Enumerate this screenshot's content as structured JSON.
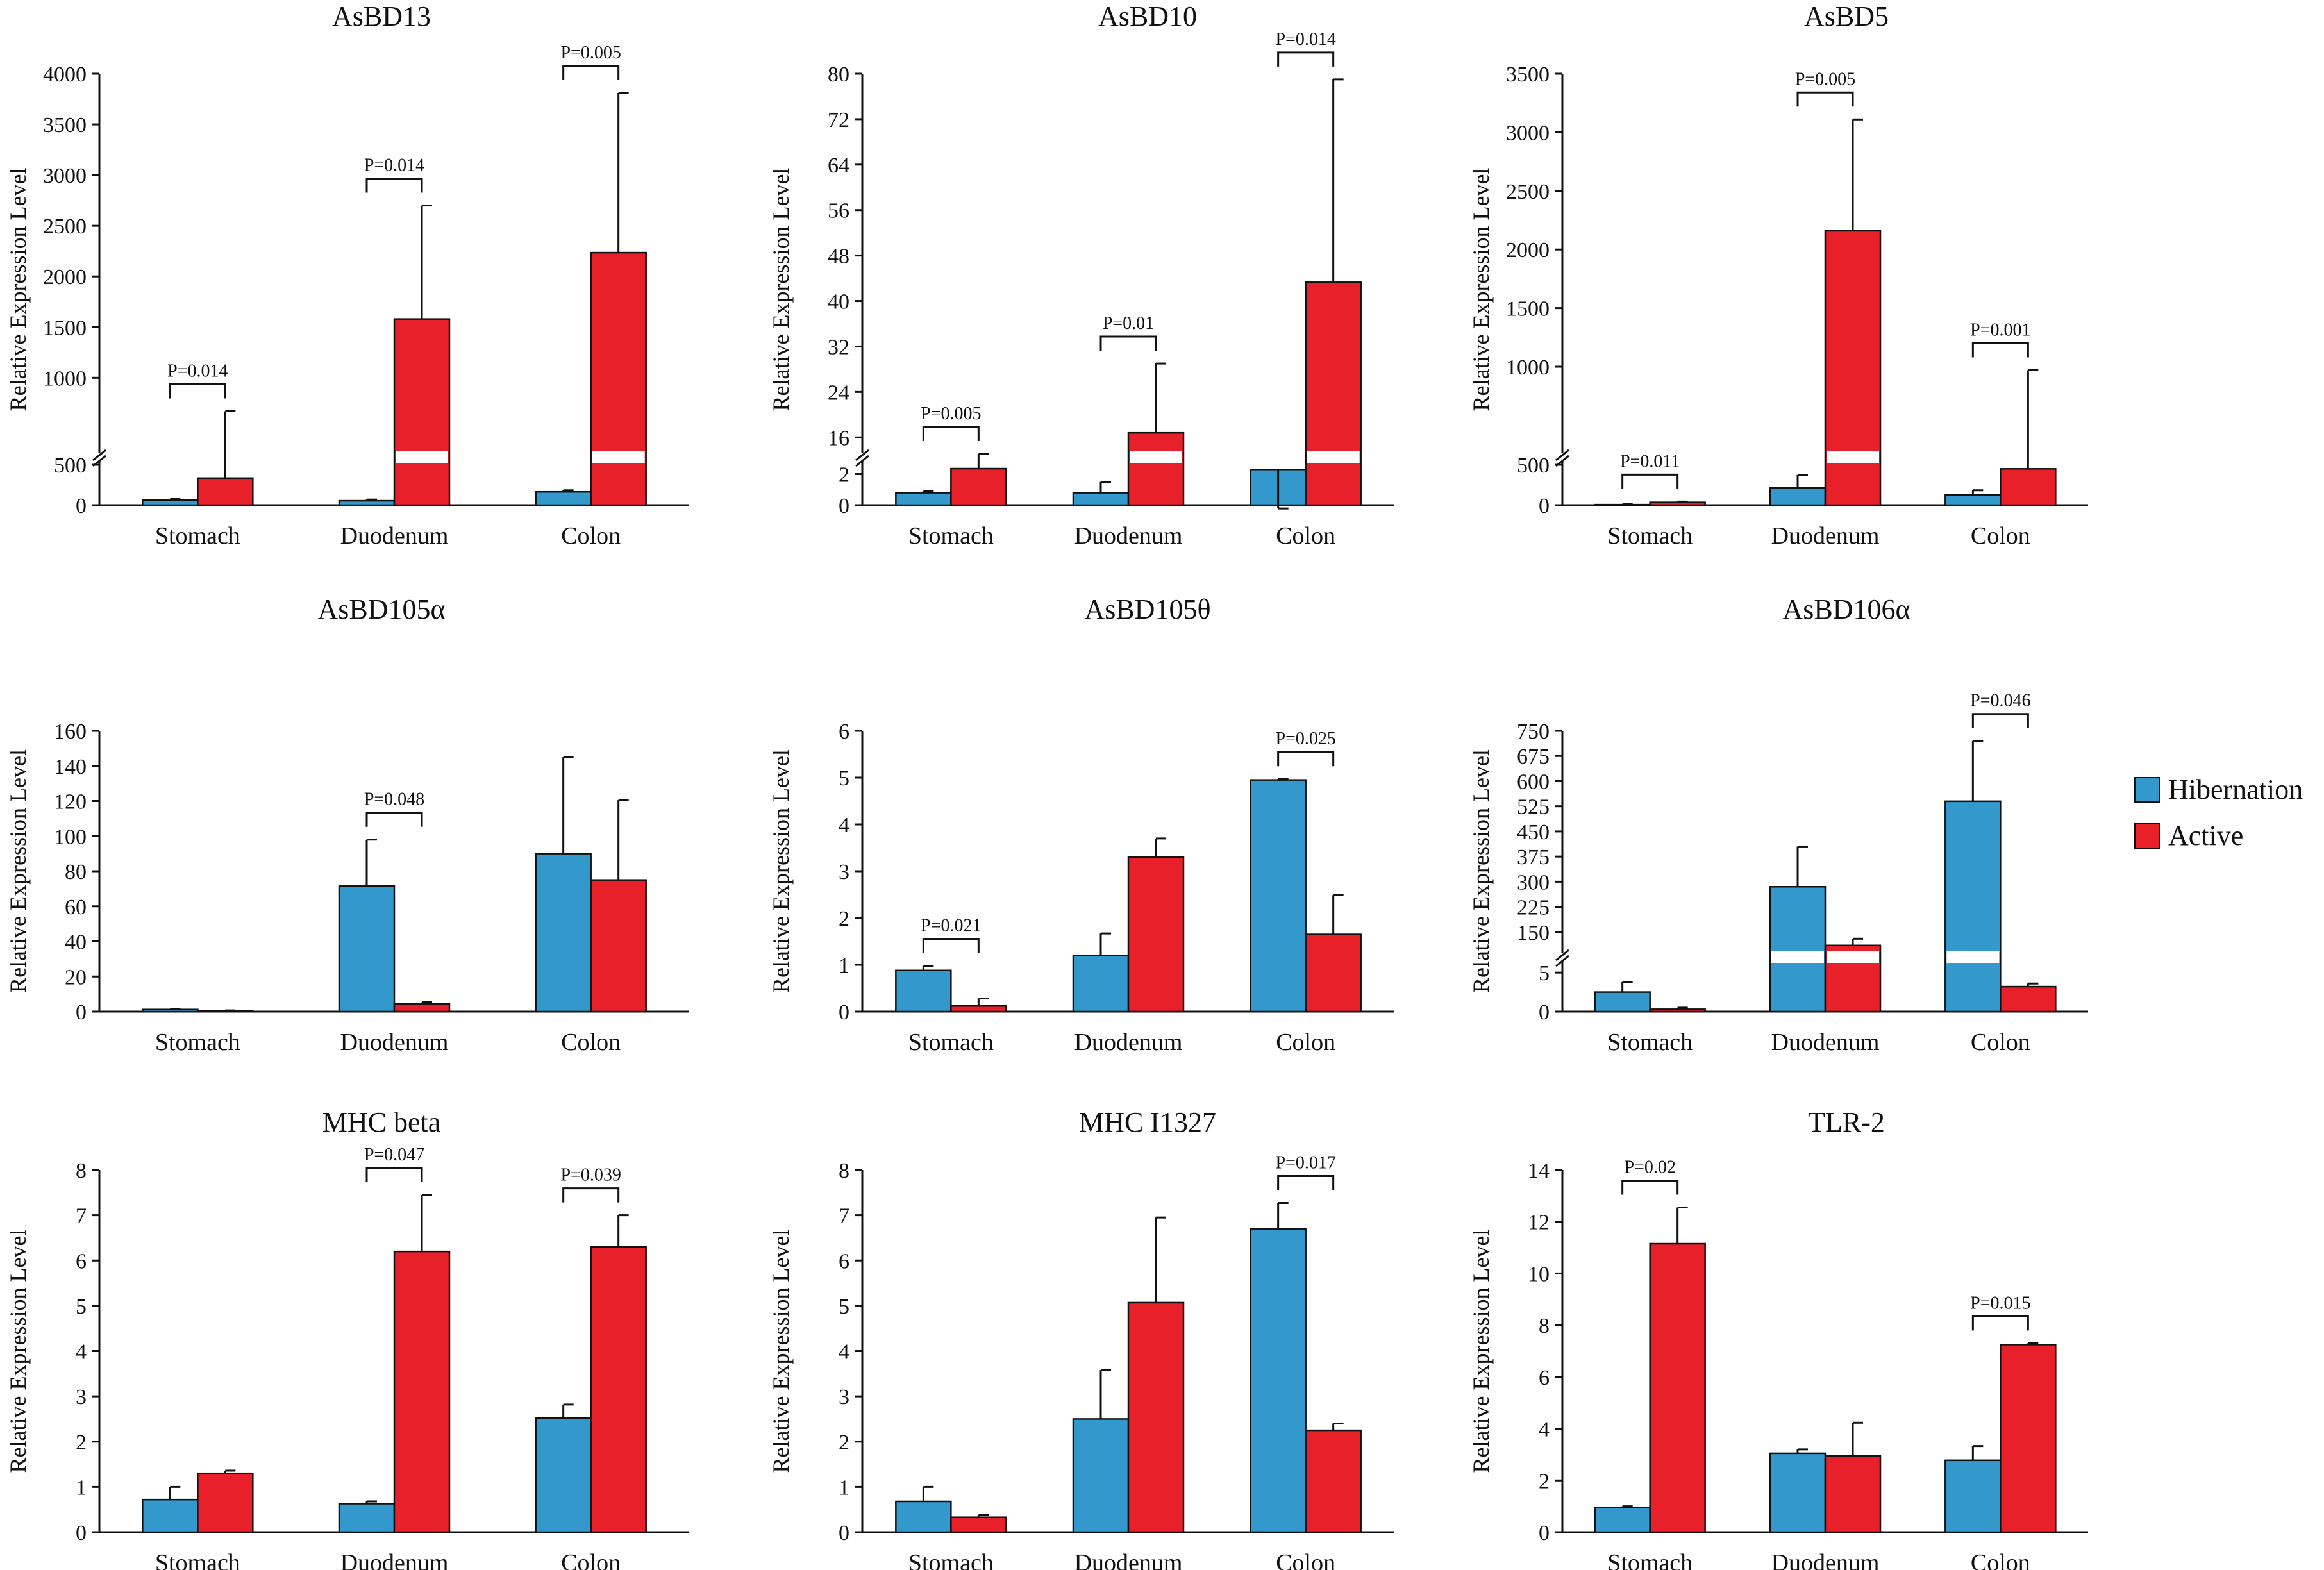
{
  "colors": {
    "hibernation": "#3399cc",
    "active": "#e8202a",
    "axis": "#111111",
    "break": "#ffffff"
  },
  "legend": {
    "hibernation": "Hibernation",
    "active": "Active"
  },
  "chart_data": [
    {
      "type": "bar",
      "title": "AsBD13",
      "ylabel": "Relative Expression Level",
      "categories": [
        "Stomach",
        "Duodenum",
        "Colon"
      ],
      "series": [
        {
          "name": "Hibernation",
          "values": [
            65,
            55,
            165
          ],
          "errors": [
            10,
            15,
            20
          ]
        },
        {
          "name": "Active",
          "values": [
            335,
            1580,
            2235
          ],
          "errors": [
            335,
            1120,
            1575
          ]
        }
      ],
      "axis_break": {
        "low_max": 500,
        "low_ticks": [
          0
        ],
        "high_min": 300,
        "high_max": 4000,
        "high_ticks": [
          500,
          1000,
          1500,
          2000,
          2500,
          3000,
          3500,
          4000
        ]
      },
      "pvalues": [
        {
          "group": 0,
          "label": "P=0.014"
        },
        {
          "group": 1,
          "label": "P=0.014"
        },
        {
          "group": 2,
          "label": "P=0.005"
        }
      ]
    },
    {
      "type": "bar",
      "title": "AsBD10",
      "ylabel": "Relative Expression Level",
      "categories": [
        "Stomach",
        "Duodenum",
        "Colon"
      ],
      "series": [
        {
          "name": "Hibernation",
          "values": [
            0.8,
            0.8,
            2.3
          ],
          "errors": [
            0.1,
            0.7,
            1.2
          ]
        },
        {
          "name": "Active",
          "values": [
            10.5,
            16.8,
            43.3
          ],
          "errors": [
            2.6,
            12.2,
            35.7
          ]
        }
      ],
      "axis_break": {
        "low_max": 2.6,
        "low_ticks": [
          0,
          2
        ],
        "high_min": 14,
        "high_max": 80,
        "high_ticks": [
          16,
          24,
          32,
          40,
          48,
          56,
          64,
          72,
          80
        ]
      },
      "pvalues": [
        {
          "group": 0,
          "label": "P=0.005"
        },
        {
          "group": 1,
          "label": "P=0.01"
        },
        {
          "group": 2,
          "label": "P=0.014"
        }
      ]
    },
    {
      "type": "bar",
      "title": "AsBD5",
      "ylabel": "Relative Expression Level",
      "categories": [
        "Stomach",
        "Duodenum",
        "Colon"
      ],
      "series": [
        {
          "name": "Hibernation",
          "values": [
            7,
            215,
            125
          ],
          "errors": [
            5,
            160,
            60
          ]
        },
        {
          "name": "Active",
          "values": [
            35,
            2160,
            450
          ],
          "errors": [
            10,
            950,
            520
          ]
        }
      ],
      "axis_break": {
        "low_max": 500,
        "low_ticks": [
          0
        ],
        "high_min": 300,
        "high_max": 3500,
        "high_ticks": [
          500,
          1000,
          1500,
          2000,
          2500,
          3000,
          3500
        ]
      },
      "pvalues": [
        {
          "group": 0,
          "label": "P=0.011"
        },
        {
          "group": 1,
          "label": "P=0.005"
        },
        {
          "group": 2,
          "label": "P=0.001"
        }
      ]
    },
    {
      "type": "bar",
      "title": "AsBD105α",
      "ylabel": "Relative Expression Level",
      "categories": [
        "Stomach",
        "Duodenum",
        "Colon"
      ],
      "series": [
        {
          "name": "Hibernation",
          "values": [
            1.2,
            71.5,
            90
          ],
          "errors": [
            0.3,
            26.5,
            55
          ]
        },
        {
          "name": "Active",
          "values": [
            0.5,
            4.5,
            75
          ],
          "errors": [
            0.2,
            0.8,
            45.5
          ]
        }
      ],
      "ylim": [
        0,
        160
      ],
      "yticks": [
        0,
        20,
        40,
        60,
        80,
        100,
        120,
        140,
        160
      ],
      "pvalues": [
        {
          "group": 1,
          "label": "P=0.048"
        }
      ]
    },
    {
      "type": "bar",
      "title": "AsBD105θ",
      "ylabel": "Relative Expression Level",
      "categories": [
        "Stomach",
        "Duodenum",
        "Colon"
      ],
      "series": [
        {
          "name": "Hibernation",
          "values": [
            0.88,
            1.2,
            4.95
          ],
          "errors": [
            0.1,
            0.47,
            0.02
          ]
        },
        {
          "name": "Active",
          "values": [
            0.12,
            3.3,
            1.65
          ],
          "errors": [
            0.16,
            0.4,
            0.84
          ]
        }
      ],
      "ylim": [
        0,
        6
      ],
      "yticks": [
        0,
        1,
        2,
        3,
        4,
        5,
        6
      ],
      "pvalues": [
        {
          "group": 0,
          "label": "P=0.021"
        },
        {
          "group": 2,
          "label": "P=0.025"
        }
      ]
    },
    {
      "type": "bar",
      "title": "AsBD106α",
      "ylabel": "Relative Expression Level",
      "categories": [
        "Stomach",
        "Duodenum",
        "Colon"
      ],
      "series": [
        {
          "name": "Hibernation",
          "values": [
            2.5,
            285,
            540
          ],
          "errors": [
            1.3,
            120,
            180
          ]
        },
        {
          "name": "Active",
          "values": [
            0.3,
            110,
            3.2
          ],
          "errors": [
            0.2,
            20,
            0.4
          ]
        }
      ],
      "axis_break": {
        "low_max": 6,
        "low_ticks": [
          0,
          5
        ],
        "high_min": 100,
        "high_max": 750,
        "high_ticks": [
          150,
          225,
          300,
          375,
          450,
          525,
          600,
          675,
          750
        ]
      },
      "pvalues": [
        {
          "group": 2,
          "label": "P=0.046"
        }
      ]
    },
    {
      "type": "bar",
      "title": "MHC beta",
      "ylabel": "Relative Expression Level",
      "categories": [
        "Stomach",
        "Duodenum",
        "Colon"
      ],
      "series": [
        {
          "name": "Hibernation",
          "values": [
            0.72,
            0.63,
            2.52
          ],
          "errors": [
            0.28,
            0.05,
            0.3
          ]
        },
        {
          "name": "Active",
          "values": [
            1.3,
            6.2,
            6.3
          ],
          "errors": [
            0.06,
            1.25,
            0.7
          ]
        }
      ],
      "ylim": [
        0,
        8
      ],
      "yticks": [
        0,
        1,
        2,
        3,
        4,
        5,
        6,
        7,
        8
      ],
      "pvalues": [
        {
          "group": 1,
          "label": "P=0.047"
        },
        {
          "group": 2,
          "label": "P=0.039"
        }
      ]
    },
    {
      "type": "bar",
      "title": "MHC I1327",
      "ylabel": "Relative Expression Level",
      "categories": [
        "Stomach",
        "Duodenum",
        "Colon"
      ],
      "series": [
        {
          "name": "Hibernation",
          "values": [
            0.68,
            2.5,
            6.7
          ],
          "errors": [
            0.32,
            1.08,
            0.57
          ]
        },
        {
          "name": "Active",
          "values": [
            0.33,
            5.07,
            2.25
          ],
          "errors": [
            0.05,
            1.88,
            0.15
          ]
        }
      ],
      "ylim": [
        0,
        8
      ],
      "yticks": [
        0,
        1,
        2,
        3,
        4,
        5,
        6,
        7,
        8
      ],
      "pvalues": [
        {
          "group": 2,
          "label": "P=0.017"
        }
      ]
    },
    {
      "type": "bar",
      "title": "TLR-2",
      "ylabel": "Relative Expression Level",
      "categories": [
        "Stomach",
        "Duodenum",
        "Colon"
      ],
      "series": [
        {
          "name": "Hibernation",
          "values": [
            0.95,
            3.05,
            2.78
          ],
          "errors": [
            0.05,
            0.15,
            0.55
          ]
        },
        {
          "name": "Active",
          "values": [
            11.15,
            2.95,
            7.25
          ],
          "errors": [
            1.4,
            1.28,
            0.05
          ]
        }
      ],
      "ylim": [
        0,
        14
      ],
      "yticks": [
        0,
        2,
        4,
        6,
        8,
        10,
        12,
        14
      ],
      "pvalues": [
        {
          "group": 0,
          "label": "P=0.02"
        },
        {
          "group": 2,
          "label": "P=0.015"
        }
      ]
    }
  ]
}
